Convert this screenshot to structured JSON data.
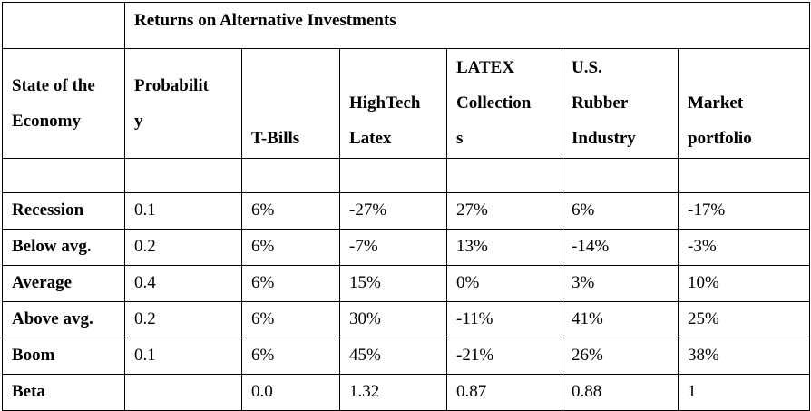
{
  "title": "Returns on Alternative Investments",
  "headers": {
    "state": [
      "State of the",
      "Economy"
    ],
    "probability": [
      "Probabilit",
      "y"
    ],
    "tbills": [
      "T-Bills"
    ],
    "hightech": [
      "HighTech",
      "Latex"
    ],
    "latex": [
      "LATEX",
      "Collection",
      "s"
    ],
    "rubber": [
      "U.S.",
      "Rubber",
      "Industry"
    ],
    "market": [
      "Market",
      "portfolio"
    ]
  },
  "rows": [
    {
      "state": "Recession",
      "probability": "0.1",
      "tbills": "6%",
      "hightech": "-27%",
      "latex": "27%",
      "rubber": "6%",
      "market": "-17%"
    },
    {
      "state": "Below avg.",
      "probability": "0.2",
      "tbills": "6%",
      "hightech": "-7%",
      "latex": "13%",
      "rubber": "-14%",
      "market": "-3%"
    },
    {
      "state": "Average",
      "probability": "0.4",
      "tbills": "6%",
      "hightech": "15%",
      "latex": "0%",
      "rubber": "3%",
      "market": "10%"
    },
    {
      "state": "Above avg.",
      "probability": "0.2",
      "tbills": "6%",
      "hightech": "30%",
      "latex": "-11%",
      "rubber": "41%",
      "market": "25%"
    },
    {
      "state": "Boom",
      "probability": "0.1",
      "tbills": "6%",
      "hightech": "45%",
      "latex": "-21%",
      "rubber": "26%",
      "market": "38%"
    },
    {
      "state": "Beta",
      "probability": "",
      "tbills": "0.0",
      "hightech": "1.32",
      "latex": "0.87",
      "rubber": "0.88",
      "market": "1"
    }
  ]
}
